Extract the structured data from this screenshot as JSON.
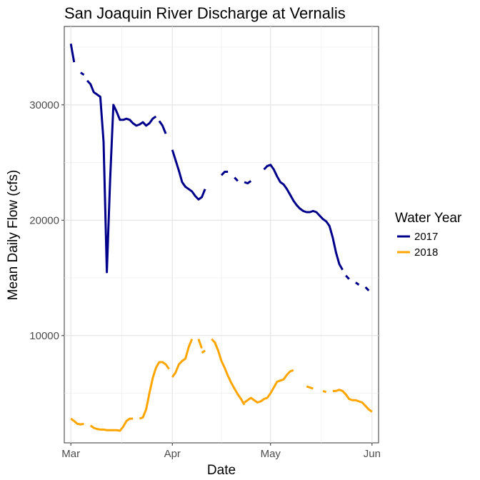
{
  "chart_data": {
    "type": "line",
    "title": "San Joaquin River Discharge at Vernalis",
    "xlabel": "Date",
    "ylabel": "Mean Daily Flow (cfs)",
    "xlim_day": [
      -2,
      94
    ],
    "ylim": [
      700,
      36800
    ],
    "x_ticks": [
      {
        "label": "Mar",
        "day": 0
      },
      {
        "label": "Apr",
        "day": 31
      },
      {
        "label": "May",
        "day": 61
      },
      {
        "label": "Jun",
        "day": 92
      }
    ],
    "x_minor_days": [
      15.5,
      46,
      76.5
    ],
    "y_ticks": [
      10000,
      20000,
      30000
    ],
    "y_minor": [
      5000,
      15000,
      25000,
      35000
    ],
    "grid": true,
    "legend": {
      "title": "Water Year",
      "position": "right"
    },
    "series": [
      {
        "name": "2017",
        "color": "#00008b",
        "segments": [
          [
            [
              0,
              35300
            ],
            [
              1,
              33700
            ]
          ],
          [
            [
              3,
              32800
            ],
            [
              4,
              32600
            ]
          ],
          [
            [
              5,
              32100
            ],
            [
              6,
              31800
            ],
            [
              7,
              31100
            ],
            [
              8,
              30900
            ],
            [
              9,
              30700
            ],
            [
              10,
              26800
            ],
            [
              11,
              15500
            ],
            [
              12,
              23500
            ],
            [
              13,
              30000
            ],
            [
              14,
              29400
            ],
            [
              15,
              28700
            ],
            [
              16,
              28700
            ],
            [
              17,
              28800
            ],
            [
              18,
              28700
            ],
            [
              19,
              28400
            ],
            [
              20,
              28200
            ],
            [
              21,
              28300
            ],
            [
              22,
              28500
            ],
            [
              23,
              28200
            ],
            [
              24,
              28400
            ],
            [
              25,
              28800
            ],
            [
              26,
              29000
            ]
          ],
          [
            [
              27,
              28600
            ],
            [
              28,
              28200
            ],
            [
              29,
              27500
            ]
          ],
          [
            [
              31,
              26100
            ],
            [
              32,
              25200
            ],
            [
              33,
              24300
            ],
            [
              34,
              23300
            ],
            [
              35,
              22900
            ],
            [
              36,
              22700
            ],
            [
              37,
              22500
            ],
            [
              38,
              22100
            ],
            [
              39,
              21800
            ],
            [
              40,
              22000
            ],
            [
              41,
              22700
            ]
          ],
          [
            [
              46,
              23900
            ],
            [
              47,
              24200
            ],
            [
              48,
              24200
            ]
          ],
          [
            [
              50,
              23700
            ],
            [
              51,
              23400
            ]
          ],
          [
            [
              53,
              23300
            ],
            [
              54,
              23200
            ],
            [
              55,
              23400
            ]
          ],
          [
            [
              59,
              24400
            ],
            [
              60,
              24700
            ],
            [
              61,
              24800
            ],
            [
              62,
              24400
            ],
            [
              63,
              23800
            ],
            [
              64,
              23300
            ],
            [
              65,
              23100
            ],
            [
              66,
              22700
            ],
            [
              67,
              22200
            ],
            [
              68,
              21700
            ],
            [
              69,
              21300
            ],
            [
              70,
              21000
            ],
            [
              71,
              20800
            ],
            [
              72,
              20700
            ],
            [
              73,
              20700
            ],
            [
              74,
              20800
            ],
            [
              75,
              20700
            ],
            [
              76,
              20400
            ],
            [
              77,
              20100
            ],
            [
              78,
              19900
            ],
            [
              79,
              19500
            ],
            [
              80,
              18500
            ],
            [
              81,
              17200
            ],
            [
              82,
              16200
            ],
            [
              83,
              15700
            ]
          ],
          [
            [
              84,
              15200
            ],
            [
              85,
              14900
            ]
          ],
          [
            [
              87,
              14600
            ],
            [
              88,
              14400
            ]
          ],
          [
            [
              90,
              14200
            ],
            [
              91,
              13900
            ]
          ]
        ]
      },
      {
        "name": "2018",
        "color": "#ffa500",
        "segments": [
          [
            [
              0,
              2800
            ],
            [
              1,
              2600
            ],
            [
              2,
              2350
            ],
            [
              3,
              2300
            ],
            [
              4,
              2350
            ]
          ],
          [
            [
              6,
              2200
            ],
            [
              7,
              2000
            ],
            [
              8,
              1900
            ],
            [
              9,
              1850
            ],
            [
              10,
              1850
            ],
            [
              11,
              1800
            ],
            [
              12,
              1800
            ],
            [
              13,
              1800
            ],
            [
              14,
              1800
            ],
            [
              15,
              1750
            ],
            [
              16,
              2100
            ],
            [
              17,
              2600
            ],
            [
              18,
              2800
            ],
            [
              19,
              2800
            ]
          ],
          [
            [
              21,
              2800
            ],
            [
              22,
              2900
            ],
            [
              23,
              3600
            ],
            [
              24,
              5000
            ],
            [
              25,
              6300
            ],
            [
              26,
              7200
            ],
            [
              27,
              7700
            ],
            [
              28,
              7700
            ],
            [
              29,
              7500
            ],
            [
              30,
              7100
            ]
          ],
          [
            [
              31,
              6400
            ],
            [
              32,
              6800
            ],
            [
              33,
              7500
            ],
            [
              34,
              7800
            ],
            [
              35,
              8000
            ],
            [
              36,
              9000
            ],
            [
              37,
              9700
            ]
          ],
          [
            [
              39,
              9700
            ],
            [
              40,
              8900
            ]
          ],
          [
            [
              40,
              8500
            ],
            [
              41,
              8700
            ]
          ],
          [
            [
              43,
              9700
            ],
            [
              44,
              9400
            ],
            [
              45,
              8700
            ],
            [
              46,
              7800
            ],
            [
              47,
              7200
            ],
            [
              48,
              6500
            ],
            [
              49,
              5900
            ],
            [
              50,
              5400
            ],
            [
              51,
              4900
            ],
            [
              52,
              4500
            ],
            [
              53,
              4000
            ]
          ],
          [
            [
              53,
              4200
            ],
            [
              54,
              4400
            ],
            [
              55,
              4600
            ],
            [
              56,
              4400
            ],
            [
              57,
              4200
            ],
            [
              58,
              4300
            ],
            [
              59,
              4500
            ],
            [
              60,
              4600
            ],
            [
              61,
              5000
            ],
            [
              62,
              5500
            ],
            [
              63,
              6000
            ],
            [
              64,
              6100
            ],
            [
              65,
              6200
            ],
            [
              66,
              6600
            ],
            [
              67,
              6900
            ],
            [
              68,
              7000
            ]
          ],
          [
            [
              72,
              5600
            ],
            [
              73,
              5500
            ],
            [
              74,
              5400
            ]
          ],
          [
            [
              77,
              5200
            ],
            [
              78,
              5100
            ]
          ],
          [
            [
              80,
              5200
            ],
            [
              81,
              5200
            ],
            [
              82,
              5300
            ],
            [
              83,
              5200
            ],
            [
              84,
              4900
            ],
            [
              85,
              4500
            ],
            [
              86,
              4400
            ],
            [
              87,
              4400
            ],
            [
              88,
              4300
            ],
            [
              89,
              4200
            ],
            [
              90,
              3900
            ],
            [
              91,
              3600
            ],
            [
              92,
              3400
            ]
          ]
        ]
      }
    ]
  }
}
